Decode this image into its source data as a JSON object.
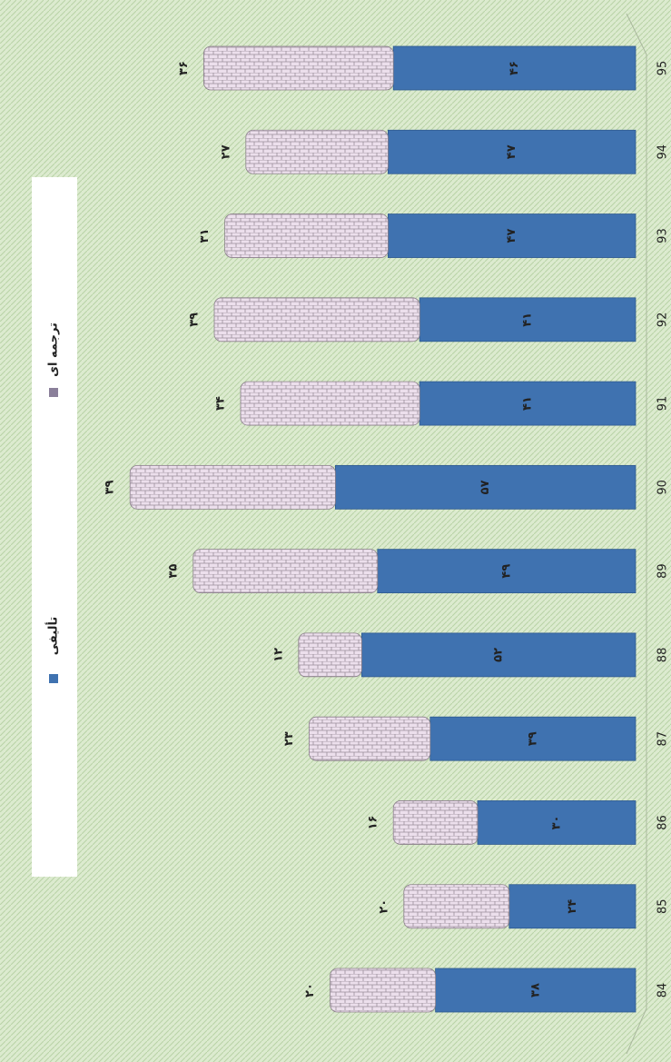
{
  "chart_data": {
    "type": "bar",
    "orientation": "horizontal",
    "stacked": true,
    "categories": [
      "84",
      "85",
      "86",
      "87",
      "88",
      "89",
      "90",
      "91",
      "92",
      "93",
      "94",
      "95"
    ],
    "series": [
      {
        "name": "تألیفی",
        "color": "#3f72b0",
        "values": [
          38,
          24,
          30,
          39,
          52,
          49,
          57,
          41,
          41,
          47,
          47,
          46
        ],
        "value_labels": [
          "۳۸",
          "۲۴",
          "۳۰",
          "۳۹",
          "۵۲",
          "۴۹",
          "۵۷",
          "۴۱",
          "۴۱",
          "۴۷",
          "۴۷",
          "۴۶"
        ]
      },
      {
        "name": "ترجمه ای",
        "color": "#e6d6e6",
        "values": [
          20,
          20,
          16,
          23,
          12,
          35,
          39,
          34,
          39,
          31,
          27,
          36
        ],
        "value_labels": [
          "۲۰",
          "۲۰",
          "۱۶",
          "۲۳",
          "۱۲",
          "۳۵",
          "۳۹",
          "۳۴",
          "۳۹",
          "۳۱",
          "۲۷",
          "۳۶"
        ]
      }
    ]
  }
}
